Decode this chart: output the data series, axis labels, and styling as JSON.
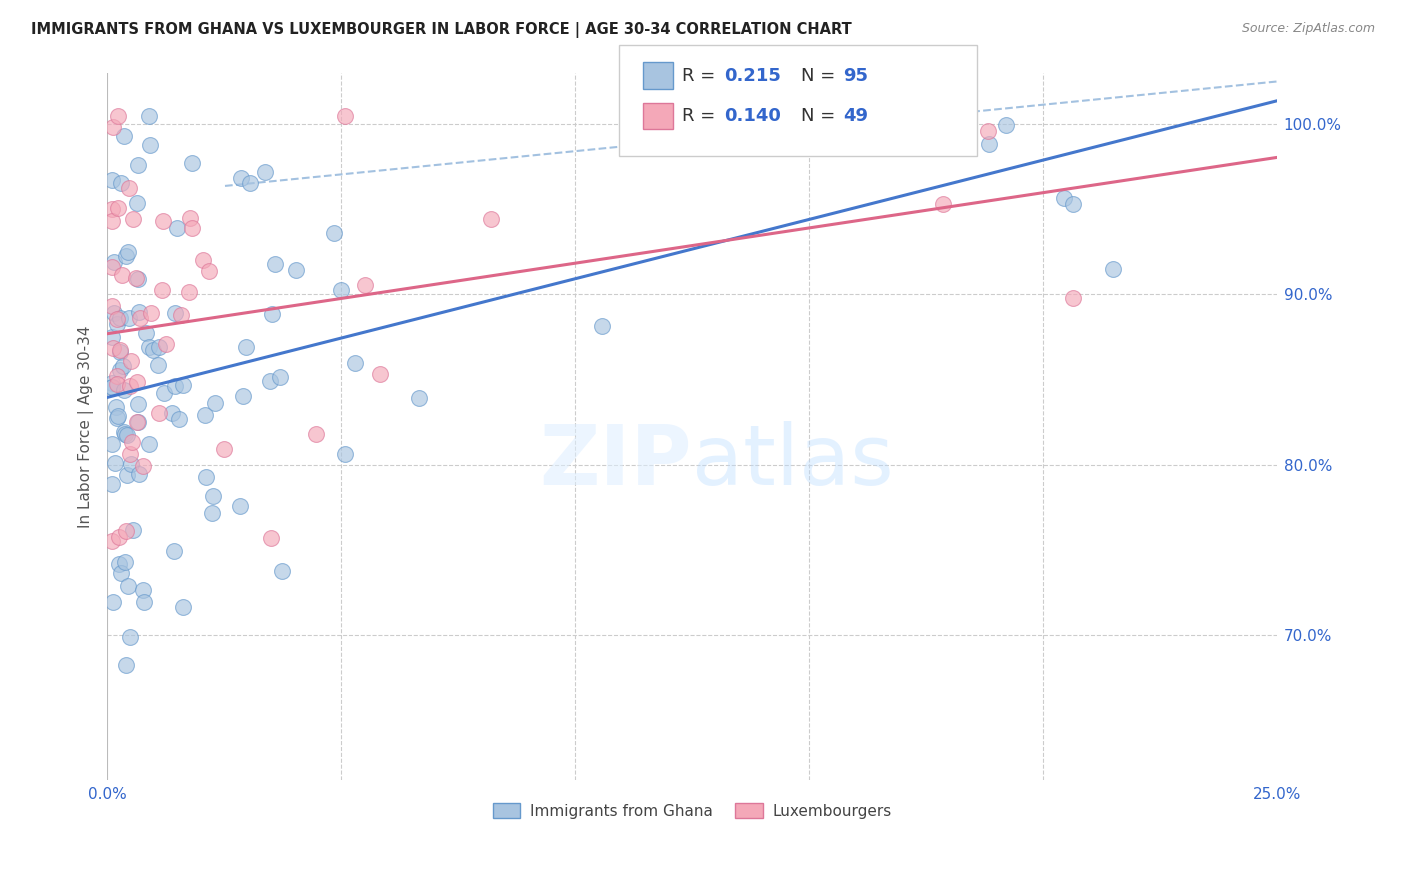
{
  "title": "IMMIGRANTS FROM GHANA VS LUXEMBOURGER IN LABOR FORCE | AGE 30-34 CORRELATION CHART",
  "source": "Source: ZipAtlas.com",
  "ylabel": "In Labor Force | Age 30-34",
  "xlim": [
    0.0,
    0.25
  ],
  "ylim": [
    0.615,
    1.03
  ],
  "ghana_color": "#a8c4e0",
  "ghana_edge": "#6699cc",
  "luxem_color": "#f4a8b8",
  "luxem_edge": "#dd7799",
  "ghana_R": 0.215,
  "ghana_N": 95,
  "luxem_R": 0.14,
  "luxem_N": 49,
  "trend_blue_color": "#4477cc",
  "trend_pink_color": "#dd6688",
  "trend_dash_color": "#99bbdd",
  "watermark_text": "ZIPatlas",
  "ytick_positions": [
    0.7,
    0.8,
    0.9,
    1.0
  ],
  "ytick_labels": [
    "70.0%",
    "80.0%",
    "90.0%",
    "100.0%"
  ],
  "xtick_left_label": "0.0%",
  "xtick_right_label": "25.0%",
  "legend_label1": "Immigrants from Ghana",
  "legend_label2": "Luxembourgers"
}
